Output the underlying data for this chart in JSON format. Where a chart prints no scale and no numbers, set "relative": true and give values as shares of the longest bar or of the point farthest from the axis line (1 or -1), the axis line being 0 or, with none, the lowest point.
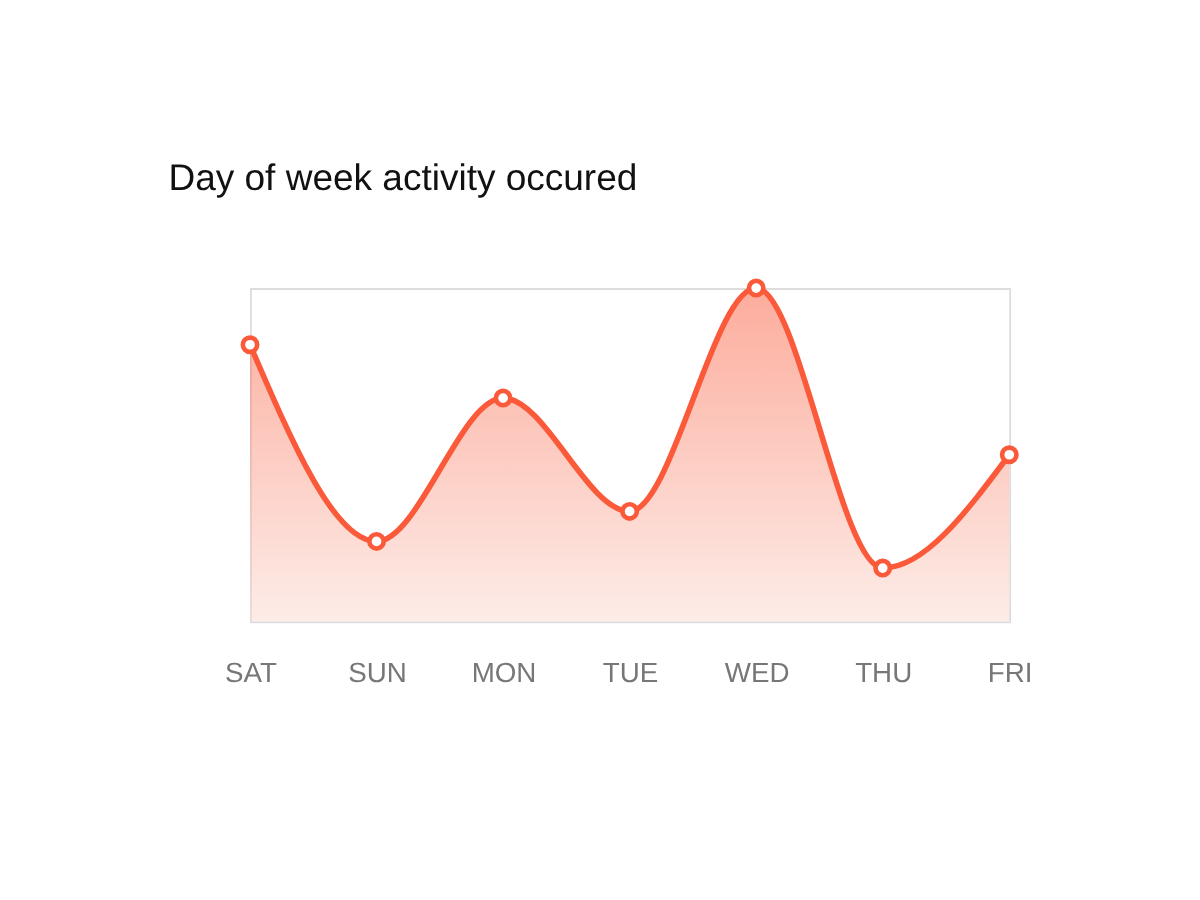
{
  "chart_data": {
    "type": "area",
    "title": "Day of week activity occured",
    "categories": [
      "SAT",
      "SUN",
      "MON",
      "TUE",
      "WED",
      "THU",
      "FRI"
    ],
    "series": [
      {
        "color": "#fa5a3a",
        "values": [
          0.83,
          0.24,
          0.67,
          0.33,
          1,
          0.16,
          0.5
        ]
      }
    ],
    "relative": true,
    "marker": "circle"
  }
}
